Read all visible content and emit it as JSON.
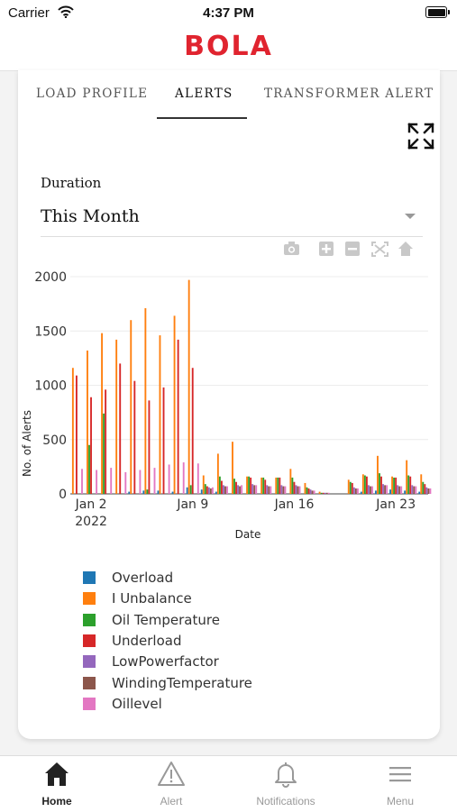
{
  "status_bar": {
    "carrier": "Carrier",
    "time": "4:37 PM"
  },
  "header": {
    "logo_text": "BOLA",
    "brand_color": "#e0242f"
  },
  "tabs": [
    {
      "label": "LOAD PROFILE",
      "active": false
    },
    {
      "label": "ALERTS",
      "active": true
    },
    {
      "label": "TRANSFORMER ALERT",
      "active": false
    }
  ],
  "filter": {
    "label": "Duration",
    "value": "This Month"
  },
  "toolbar_icons": [
    "camera-icon",
    "zoom-in-icon",
    "zoom-out-icon",
    "autoscale-icon",
    "reset-home-icon"
  ],
  "chart_data": {
    "type": "bar",
    "title": "",
    "xlabel": "Date",
    "ylabel": "No. of Alerts",
    "ylim": [
      0,
      2100
    ],
    "yticks": [
      0,
      500,
      1000,
      1500,
      2000
    ],
    "xticks": [
      {
        "date": "2022-01-02",
        "label": "Jan 2",
        "sublabel": "2022"
      },
      {
        "date": "2022-01-09",
        "label": "Jan 9",
        "sublabel": ""
      },
      {
        "date": "2022-01-16",
        "label": "Jan 16",
        "sublabel": ""
      },
      {
        "date": "2022-01-23",
        "label": "Jan 23",
        "sublabel": ""
      }
    ],
    "dates": [
      "2022-01-01",
      "2022-01-02",
      "2022-01-03",
      "2022-01-04",
      "2022-01-05",
      "2022-01-06",
      "2022-01-07",
      "2022-01-08",
      "2022-01-09",
      "2022-01-10",
      "2022-01-11",
      "2022-01-12",
      "2022-01-13",
      "2022-01-14",
      "2022-01-15",
      "2022-01-16",
      "2022-01-17",
      "2022-01-18",
      "2022-01-19",
      "2022-01-20",
      "2022-01-21",
      "2022-01-22",
      "2022-01-23",
      "2022-01-24",
      "2022-01-25"
    ],
    "series": [
      {
        "name": "Overload",
        "color": "#1f77b4",
        "values": [
          0,
          0,
          0,
          0,
          20,
          30,
          30,
          20,
          60,
          40,
          20,
          0,
          0,
          0,
          0,
          0,
          0,
          0,
          0,
          0,
          20,
          30,
          40,
          30,
          20
        ]
      },
      {
        "name": "I Unbalance",
        "color": "#ff7f0e",
        "values": [
          1160,
          1320,
          1480,
          1420,
          1600,
          1710,
          1460,
          1640,
          1970,
          170,
          370,
          480,
          160,
          150,
          150,
          230,
          100,
          20,
          0,
          130,
          180,
          350,
          160,
          310,
          180
        ]
      },
      {
        "name": "Oil Temperature",
        "color": "#2ca02c",
        "values": [
          0,
          450,
          740,
          0,
          0,
          40,
          0,
          0,
          80,
          90,
          160,
          140,
          160,
          150,
          150,
          150,
          60,
          10,
          0,
          110,
          170,
          190,
          150,
          170,
          110
        ]
      },
      {
        "name": "Underload",
        "color": "#d62728",
        "values": [
          1090,
          890,
          960,
          1200,
          1040,
          860,
          980,
          1420,
          1160,
          70,
          120,
          110,
          150,
          130,
          150,
          110,
          50,
          10,
          0,
          100,
          160,
          160,
          150,
          160,
          90
        ]
      },
      {
        "name": "LowPowerfactor",
        "color": "#9467bd",
        "values": [
          0,
          0,
          0,
          0,
          0,
          0,
          0,
          0,
          0,
          60,
          80,
          80,
          90,
          80,
          80,
          80,
          40,
          10,
          0,
          60,
          80,
          90,
          80,
          80,
          60
        ]
      },
      {
        "name": "WindingTemperature",
        "color": "#8c564b",
        "values": [
          0,
          0,
          0,
          0,
          0,
          0,
          0,
          0,
          0,
          50,
          70,
          70,
          80,
          70,
          70,
          70,
          30,
          10,
          0,
          50,
          70,
          80,
          70,
          70,
          50
        ]
      },
      {
        "name": "Oillevel",
        "color": "#e377c2",
        "values": [
          230,
          220,
          240,
          200,
          220,
          240,
          270,
          290,
          280,
          60,
          70,
          80,
          80,
          70,
          70,
          70,
          30,
          10,
          0,
          50,
          70,
          80,
          70,
          70,
          50
        ]
      }
    ],
    "legend_position": "bottom-left",
    "grid": true
  },
  "bottom_nav": [
    {
      "label": "Home",
      "icon": "home-icon",
      "active": true
    },
    {
      "label": "Alert",
      "icon": "alert-triangle-icon",
      "active": false
    },
    {
      "label": "Notifications",
      "icon": "bell-icon",
      "active": false
    },
    {
      "label": "Menu",
      "icon": "menu-icon",
      "active": false
    }
  ]
}
